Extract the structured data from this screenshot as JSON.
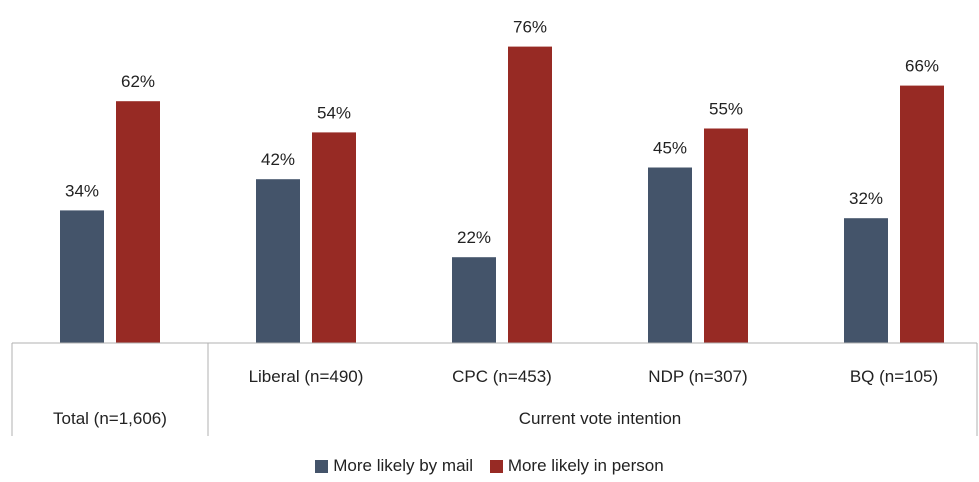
{
  "chart_data": {
    "type": "bar",
    "categories": [
      "Total (n=1,606)",
      "Liberal (n=490)",
      "CPC (n=453)",
      "NDP (n=307)",
      "BQ (n=105)"
    ],
    "group_label": "Current vote intention",
    "series": [
      {
        "name": "More likely by mail",
        "values": [
          34,
          42,
          22,
          45,
          32
        ],
        "color": "#44546a"
      },
      {
        "name": "More likely in person",
        "values": [
          62,
          54,
          76,
          55,
          66
        ],
        "color": "#972a24"
      }
    ],
    "value_suffix": "%",
    "ylim": [
      0,
      80
    ],
    "grid": false,
    "legend_position": "bottom"
  }
}
